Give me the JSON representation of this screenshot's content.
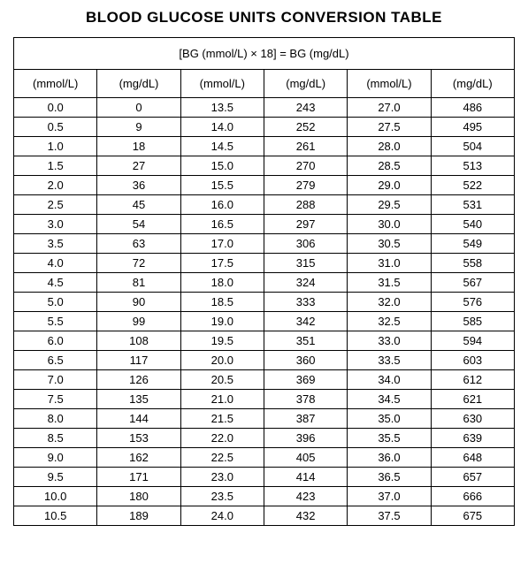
{
  "title": "BLOOD GLUCOSE UNITS CONVERSION TABLE",
  "formula": "[BG (mmol/L) × 18] = BG (mg/dL)",
  "headers": {
    "mmol": "(mmol/L)",
    "mgdl": "(mg/dL)"
  },
  "table": {
    "type": "table",
    "border_color": "#000000",
    "background_color": "#ffffff",
    "text_color": "#000000",
    "font_family": "Comic Sans MS",
    "title_fontsize": 17,
    "cell_fontsize": 13,
    "column_pairs": 3,
    "rows_per_column": 22,
    "columns": [
      {
        "label": "(mmol/L)",
        "align": "center"
      },
      {
        "label": "(mg/dL)",
        "align": "center"
      },
      {
        "label": "(mmol/L)",
        "align": "center"
      },
      {
        "label": "(mg/dL)",
        "align": "center"
      },
      {
        "label": "(mmol/L)",
        "align": "center"
      },
      {
        "label": "(mg/dL)",
        "align": "center"
      }
    ]
  },
  "rows": [
    {
      "c1m": "0.0",
      "c1d": "0",
      "c2m": "13.5",
      "c2d": "243",
      "c3m": "27.0",
      "c3d": "486"
    },
    {
      "c1m": "0.5",
      "c1d": "9",
      "c2m": "14.0",
      "c2d": "252",
      "c3m": "27.5",
      "c3d": "495"
    },
    {
      "c1m": "1.0",
      "c1d": "18",
      "c2m": "14.5",
      "c2d": "261",
      "c3m": "28.0",
      "c3d": "504"
    },
    {
      "c1m": "1.5",
      "c1d": "27",
      "c2m": "15.0",
      "c2d": "270",
      "c3m": "28.5",
      "c3d": "513"
    },
    {
      "c1m": "2.0",
      "c1d": "36",
      "c2m": "15.5",
      "c2d": "279",
      "c3m": "29.0",
      "c3d": "522"
    },
    {
      "c1m": "2.5",
      "c1d": "45",
      "c2m": "16.0",
      "c2d": "288",
      "c3m": "29.5",
      "c3d": "531"
    },
    {
      "c1m": "3.0",
      "c1d": "54",
      "c2m": "16.5",
      "c2d": "297",
      "c3m": "30.0",
      "c3d": "540"
    },
    {
      "c1m": "3.5",
      "c1d": "63",
      "c2m": "17.0",
      "c2d": "306",
      "c3m": "30.5",
      "c3d": "549"
    },
    {
      "c1m": "4.0",
      "c1d": "72",
      "c2m": "17.5",
      "c2d": "315",
      "c3m": "31.0",
      "c3d": "558"
    },
    {
      "c1m": "4.5",
      "c1d": "81",
      "c2m": "18.0",
      "c2d": "324",
      "c3m": "31.5",
      "c3d": "567"
    },
    {
      "c1m": "5.0",
      "c1d": "90",
      "c2m": "18.5",
      "c2d": "333",
      "c3m": "32.0",
      "c3d": "576"
    },
    {
      "c1m": "5.5",
      "c1d": "99",
      "c2m": "19.0",
      "c2d": "342",
      "c3m": "32.5",
      "c3d": "585"
    },
    {
      "c1m": "6.0",
      "c1d": "108",
      "c2m": "19.5",
      "c2d": "351",
      "c3m": "33.0",
      "c3d": "594"
    },
    {
      "c1m": "6.5",
      "c1d": "117",
      "c2m": "20.0",
      "c2d": "360",
      "c3m": "33.5",
      "c3d": "603"
    },
    {
      "c1m": "7.0",
      "c1d": "126",
      "c2m": "20.5",
      "c2d": "369",
      "c3m": "34.0",
      "c3d": "612"
    },
    {
      "c1m": "7.5",
      "c1d": "135",
      "c2m": "21.0",
      "c2d": "378",
      "c3m": "34.5",
      "c3d": "621"
    },
    {
      "c1m": "8.0",
      "c1d": "144",
      "c2m": "21.5",
      "c2d": "387",
      "c3m": "35.0",
      "c3d": "630"
    },
    {
      "c1m": "8.5",
      "c1d": "153",
      "c2m": "22.0",
      "c2d": "396",
      "c3m": "35.5",
      "c3d": "639"
    },
    {
      "c1m": "9.0",
      "c1d": "162",
      "c2m": "22.5",
      "c2d": "405",
      "c3m": "36.0",
      "c3d": "648"
    },
    {
      "c1m": "9.5",
      "c1d": "171",
      "c2m": "23.0",
      "c2d": "414",
      "c3m": "36.5",
      "c3d": "657"
    },
    {
      "c1m": "10.0",
      "c1d": "180",
      "c2m": "23.5",
      "c2d": "423",
      "c3m": "37.0",
      "c3d": "666"
    },
    {
      "c1m": "10.5",
      "c1d": "189",
      "c2m": "24.0",
      "c2d": "432",
      "c3m": "37.5",
      "c3d": "675"
    }
  ]
}
